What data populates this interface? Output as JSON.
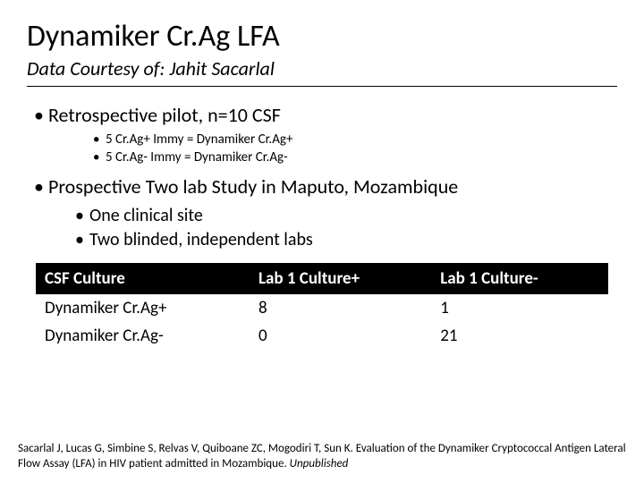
{
  "title": "Dynamiker Cr.Ag LFA",
  "subtitle": "Data Courtesy of: Jahit Sacarlal",
  "bullets": {
    "b1": "Retrospective pilot, n=10 CSF",
    "b1_sub": [
      "5 Cr.Ag+ Immy  = Dynamiker Cr.Ag+",
      "5 Cr.Ag- Immy = Dynamiker Cr.Ag-"
    ],
    "b2": "Prospective Two lab Study in Maputo, Mozambique",
    "b2_sub": [
      "One clinical site",
      "Two blinded, independent labs"
    ]
  },
  "table": {
    "columns": [
      "CSF Culture",
      "Lab 1 Culture+",
      "Lab 1 Culture-"
    ],
    "rows": [
      [
        "Dynamiker Cr.Ag+",
        "8",
        "1"
      ],
      [
        "Dynamiker Cr.Ag-",
        "0",
        "21"
      ]
    ]
  },
  "citation": {
    "text": "Sacarlal J, Lucas G, Simbine S, Relvas V, Quiboane ZC, Mogodiri T, Sun K. Evaluation of the Dynamiker Cryptococcal Antigen Lateral Flow Assay (LFA) in HIV patient admitted in Mozambique. ",
    "unpublished": "Unpublished"
  }
}
